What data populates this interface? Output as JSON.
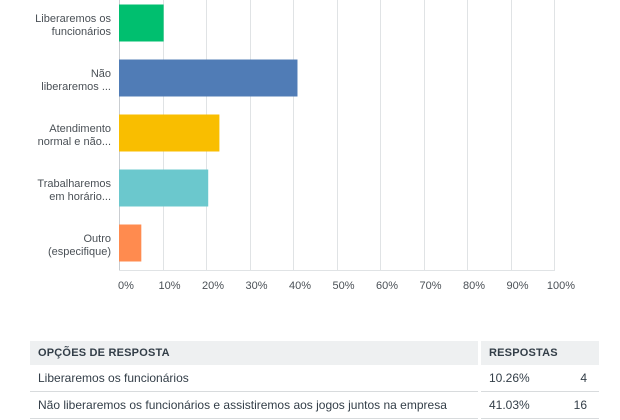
{
  "chart_data": {
    "type": "bar",
    "orientation": "horizontal",
    "categories": [
      [
        "Liberaremos os",
        "funcionários"
      ],
      [
        "Não",
        "liberaremos ..."
      ],
      [
        "Atendimento",
        "normal e não..."
      ],
      [
        "Trabalharemos",
        "em horário..."
      ],
      [
        "Outro",
        "(especifique)"
      ]
    ],
    "values": [
      10.26,
      41.03,
      23.08,
      20.51,
      5.13
    ],
    "colors": [
      "#00bf6f",
      "#507cb6",
      "#f9be00",
      "#6bc8cd",
      "#ff8b4f"
    ],
    "xlim": [
      0,
      100
    ],
    "x_ticks": [
      "0%",
      "10%",
      "20%",
      "30%",
      "40%",
      "50%",
      "60%",
      "70%",
      "80%",
      "90%",
      "100%"
    ],
    "grid": true,
    "gridline_color": "#e0e3e5"
  },
  "table": {
    "headers": {
      "option": "OPÇÕES DE RESPOSTA",
      "responses": "RESPOSTAS"
    },
    "rows": [
      {
        "option": "Liberaremos os funcionários",
        "percent": "10.26%",
        "count": "4"
      },
      {
        "option": "Não liberaremos os funcionários e assistiremos aos jogos juntos na empresa",
        "percent": "41.03%",
        "count": "16"
      }
    ]
  }
}
